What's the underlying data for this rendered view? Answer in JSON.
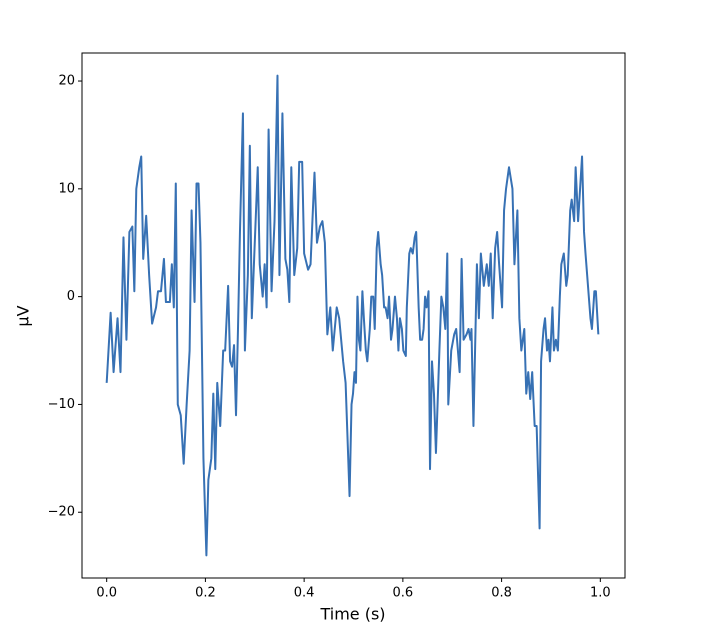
{
  "chart_data": {
    "type": "line",
    "xlabel": "Time (s)",
    "ylabel": "µV",
    "xlim": [
      -0.05,
      1.05
    ],
    "ylim": [
      -26.1,
      22.6
    ],
    "xticks": [
      {
        "value": 0,
        "label": "0.0"
      },
      0.2,
      0.4,
      0.6,
      0.8,
      {
        "value": 1,
        "label": "1.0"
      }
    ],
    "yticks": [
      {
        "value": -20,
        "label": "−20"
      },
      {
        "value": -10,
        "label": "−10"
      },
      0,
      10,
      20
    ],
    "x": [
      0,
      0.008,
      0.014,
      0.022,
      0.028,
      0.034,
      0.04,
      0.046,
      0.052,
      0.056,
      0.06,
      0.066,
      0.07,
      0.074,
      0.08,
      0.086,
      0.092,
      0.1,
      0.104,
      0.11,
      0.116,
      0.12,
      0.128,
      0.132,
      0.136,
      0.14,
      0.144,
      0.15,
      0.156,
      0.162,
      0.168,
      0.172,
      0.178,
      0.182,
      0.186,
      0.19,
      0.196,
      0.202,
      0.206,
      0.212,
      0.216,
      0.22,
      0.224,
      0.23,
      0.236,
      0.24,
      0.246,
      0.25,
      0.254,
      0.258,
      0.262,
      0.266,
      0.27,
      0.276,
      0.28,
      0.286,
      0.29,
      0.294,
      0.3,
      0.306,
      0.31,
      0.316,
      0.32,
      0.324,
      0.328,
      0.334,
      0.34,
      0.346,
      0.35,
      0.356,
      0.362,
      0.366,
      0.37,
      0.374,
      0.38,
      0.386,
      0.39,
      0.396,
      0.4,
      0.408,
      0.413,
      0.421,
      0.426,
      0.432,
      0.437,
      0.442,
      0.447,
      0.453,
      0.458,
      0.466,
      0.471,
      0.479,
      0.484,
      0.492,
      0.496,
      0.499,
      0.502,
      0.505,
      0.508,
      0.511,
      0.514,
      0.518,
      0.521,
      0.525,
      0.528,
      0.533,
      0.536,
      0.54,
      0.543,
      0.547,
      0.55,
      0.555,
      0.558,
      0.562,
      0.565,
      0.569,
      0.572,
      0.576,
      0.579,
      0.584,
      0.588,
      0.591,
      0.594,
      0.598,
      0.601,
      0.606,
      0.608,
      0.613,
      0.616,
      0.62,
      0.624,
      0.627,
      0.632,
      0.635,
      0.639,
      0.642,
      0.645,
      0.648,
      0.652,
      0.655,
      0.659,
      0.663,
      0.667,
      0.674,
      0.678,
      0.682,
      0.686,
      0.69,
      0.692,
      0.698,
      0.704,
      0.708,
      0.715,
      0.719,
      0.723,
      0.729,
      0.733,
      0.737,
      0.739,
      0.743,
      0.75,
      0.754,
      0.758,
      0.764,
      0.77,
      0.774,
      0.778,
      0.782,
      0.787,
      0.791,
      0.795,
      0.801,
      0.805,
      0.809,
      0.815,
      0.822,
      0.826,
      0.832,
      0.836,
      0.84,
      0.846,
      0.85,
      0.854,
      0.858,
      0.862,
      0.867,
      0.871,
      0.877,
      0.88,
      0.885,
      0.888,
      0.892,
      0.895,
      0.898,
      0.903,
      0.906,
      0.91,
      0.914,
      0.918,
      0.921,
      0.926,
      0.931,
      0.934,
      0.939,
      0.942,
      0.947,
      0.95,
      0.955,
      0.959,
      0.963,
      0.967,
      0.97,
      0.975,
      0.98,
      0.983,
      0.988,
      0.991,
      0.996
    ],
    "series": [
      {
        "color": "#3771b4",
        "values": [
          -8,
          -1.5,
          -7,
          -2,
          -7,
          5.5,
          -4,
          6,
          6.5,
          0.5,
          10,
          12,
          13,
          3.5,
          7.5,
          2,
          -2.5,
          -1,
          0.5,
          0.5,
          3.5,
          -0.5,
          -0.5,
          3,
          -1,
          10.5,
          -10,
          -11,
          -15.5,
          -10,
          -5,
          8,
          -0.5,
          10.5,
          10.5,
          5,
          -15,
          -24,
          -17,
          -15,
          -9,
          -16,
          -8,
          -12,
          -5,
          -5,
          1,
          -6,
          -6.5,
          -4.5,
          -11,
          -3,
          6,
          17,
          -5,
          2,
          14,
          -2,
          5,
          12,
          3,
          0,
          3,
          -1,
          15.5,
          0.5,
          7,
          20.5,
          2,
          17,
          3.5,
          2.5,
          -0.5,
          12,
          2,
          4.5,
          12.5,
          12.5,
          4,
          2.5,
          3,
          11.5,
          5,
          6.5,
          7,
          5,
          -3.5,
          -1,
          -5,
          -1,
          -2,
          -6,
          -8,
          -18.5,
          -10,
          -9,
          -7,
          -8,
          0,
          -4,
          -5,
          0.5,
          -2,
          -5,
          -6,
          -3,
          0,
          0,
          -3,
          4.5,
          6,
          3,
          2,
          -1,
          -1,
          -2,
          0,
          -4,
          -3,
          0,
          -2,
          -5,
          -2,
          -3,
          -5,
          -5.5,
          -1,
          4,
          4.5,
          4,
          5.5,
          6,
          -1,
          -4,
          -4,
          -3,
          0,
          -1,
          0.5,
          -16,
          -6,
          -9,
          -14.5,
          -5,
          0,
          -1,
          -3,
          4,
          -10,
          -5,
          -3.5,
          -3,
          -7,
          3.5,
          -4,
          -3.5,
          -3,
          -4,
          -3,
          -12,
          3,
          -2,
          4,
          1,
          3,
          1,
          4,
          -2,
          4.5,
          6,
          3,
          -1,
          8,
          10,
          12,
          10,
          3,
          8,
          -2,
          -5,
          -3,
          -9,
          -7,
          -9.5,
          -7,
          -12,
          -12,
          -21.5,
          -6,
          -3,
          -2,
          -5,
          -4,
          -6,
          -1,
          -5,
          -4,
          -5,
          0,
          3,
          4,
          1,
          2,
          8,
          9,
          7,
          12,
          7,
          10,
          13,
          6,
          4,
          1,
          -2,
          -3,
          0.5,
          0.5,
          -3.5
        ]
      }
    ]
  }
}
